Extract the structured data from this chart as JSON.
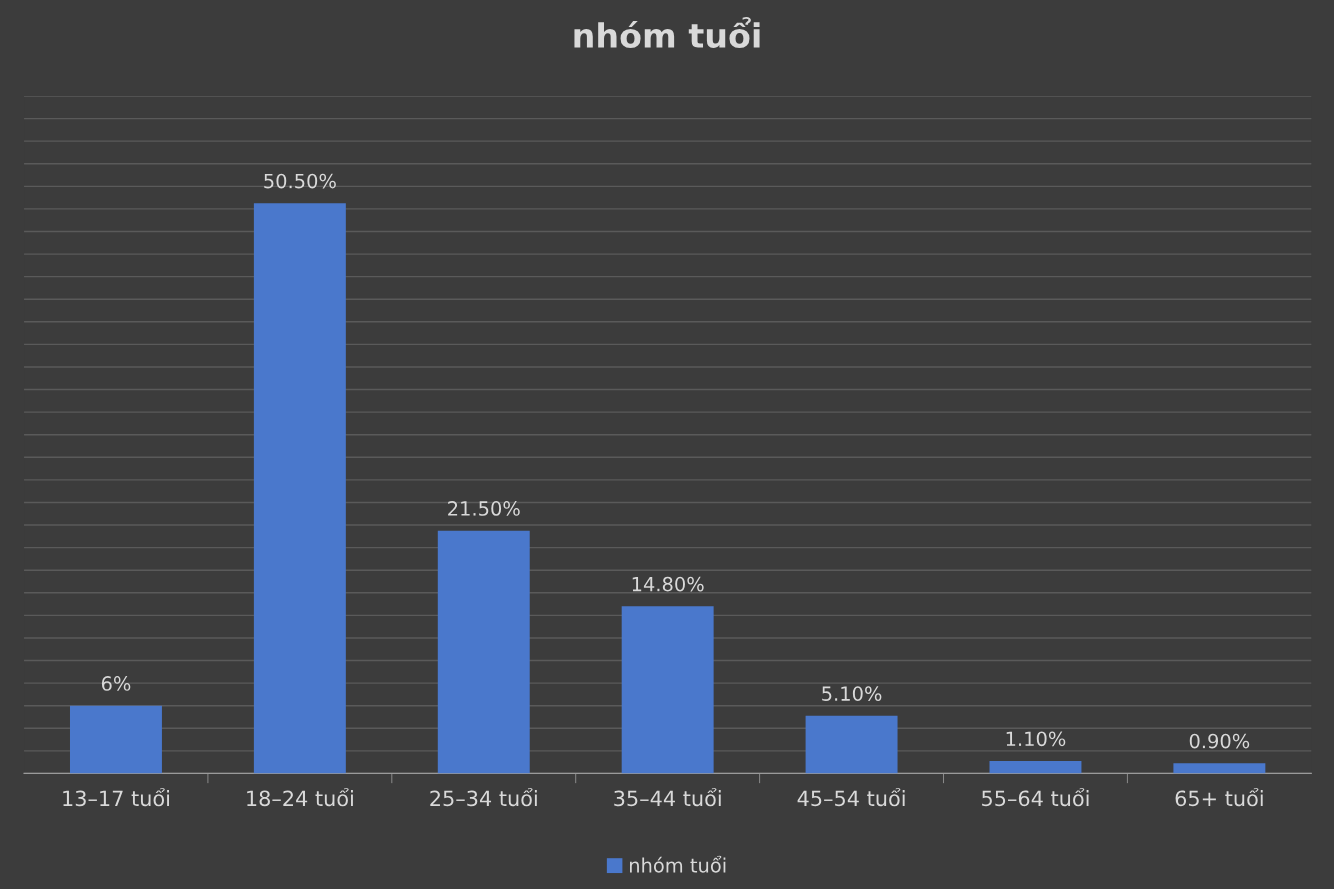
{
  "chart_data": {
    "type": "bar",
    "title": "nhóm tuổi",
    "categories": [
      "13–17 tuổi",
      "18–24 tuổi",
      "25–34 tuổi",
      "35–44 tuổi",
      "45–54 tuổi",
      "55–64 tuổi",
      "65+ tuổi"
    ],
    "series": [
      {
        "name": "nhóm tuổi",
        "color": "#4a78cc",
        "values": [
          6,
          50.5,
          21.5,
          14.8,
          5.1,
          1.1,
          0.9
        ],
        "value_labels": [
          "6%",
          "50.50%",
          "21.50%",
          "14.80%",
          "5.10%",
          "1.10%",
          "0.90%"
        ]
      }
    ],
    "ylim": [
      0,
      60
    ],
    "yticks": [
      {
        "value": 0,
        "label": null
      },
      {
        "value": 2,
        "label": null
      },
      {
        "value": 4,
        "label": null
      },
      {
        "value": 6,
        "label": null
      },
      {
        "value": 8,
        "label": null
      },
      {
        "value": 10,
        "label": null
      },
      {
        "value": 12,
        "label": null
      },
      {
        "value": 14,
        "label": null
      },
      {
        "value": 16,
        "label": null
      },
      {
        "value": 18,
        "label": null
      },
      {
        "value": 20,
        "label": null
      },
      {
        "value": 22,
        "label": null
      },
      {
        "value": 24,
        "label": null
      },
      {
        "value": 26,
        "label": null
      },
      {
        "value": 28,
        "label": null
      },
      {
        "value": 30,
        "label": null
      },
      {
        "value": 32,
        "label": null
      },
      {
        "value": 34,
        "label": null
      },
      {
        "value": 36,
        "label": null
      },
      {
        "value": 38,
        "label": null
      },
      {
        "value": 40,
        "label": null
      },
      {
        "value": 42,
        "label": null
      },
      {
        "value": 44,
        "label": null
      },
      {
        "value": 46,
        "label": null
      },
      {
        "value": 48,
        "label": null
      },
      {
        "value": 50,
        "label": null
      },
      {
        "value": 52,
        "label": null
      },
      {
        "value": 54,
        "label": null
      },
      {
        "value": 56,
        "label": null
      },
      {
        "value": 58,
        "label": null
      },
      {
        "value": 60,
        "label": null
      }
    ],
    "tick_labels": "x",
    "grid": "y",
    "legend": "bottom"
  }
}
